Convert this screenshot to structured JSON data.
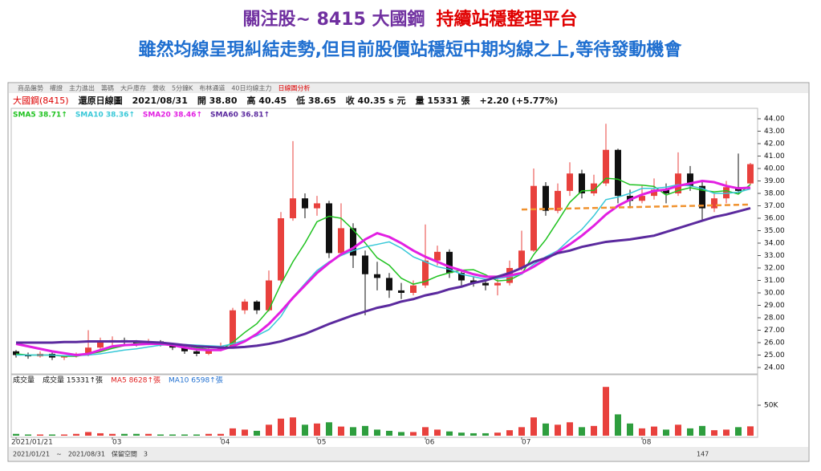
{
  "header": {
    "title": "關注股~ 8415 大國鋼",
    "highlight": "持續站穩整理平台",
    "subtitle": "雖然均線呈現糾結走勢,但目前股價站穩短中期均線之上,等待發動機會"
  },
  "toolbar": {
    "tabs": [
      "商品盤勢",
      "權證",
      "主力進出",
      "籌碼",
      "大戶庫存",
      "營收",
      "5分鐘K",
      "布林通道",
      "40日均線主力",
      "日線圖分析"
    ]
  },
  "info": {
    "stock": "大國鋼(8415)",
    "mode": "還原日線圖",
    "date": "2021/08/31",
    "open": "開 38.80",
    "high": "高 40.45",
    "low": "低 38.65",
    "close": "收 40.35 s 元",
    "volume": "量 15331 張",
    "change": "+2.20 (+5.77%)"
  },
  "chart_data": {
    "type": "candlestick",
    "categories": [
      "2021/01/21",
      null,
      null,
      null,
      null,
      null,
      null,
      null,
      "03",
      null,
      null,
      null,
      null,
      null,
      null,
      null,
      null,
      "04",
      null,
      null,
      null,
      null,
      null,
      null,
      null,
      "05",
      null,
      null,
      null,
      null,
      null,
      null,
      null,
      null,
      "06",
      null,
      null,
      null,
      null,
      null,
      null,
      null,
      "07",
      null,
      null,
      null,
      null,
      null,
      null,
      null,
      null,
      null,
      "08",
      null,
      null,
      null,
      null,
      null,
      null,
      null,
      null,
      null
    ],
    "open": [
      25.3,
      25.0,
      24.9,
      25.1,
      24.8,
      24.9,
      25.0,
      25.6,
      26.0,
      26.2,
      26.0,
      25.9,
      26.1,
      25.9,
      25.6,
      25.3,
      25.1,
      25.4,
      25.7,
      28.6,
      29.3,
      28.6,
      31.0,
      36.0,
      37.6,
      36.8,
      37.2,
      33.2,
      35.2,
      33.0,
      31.5,
      31.2,
      30.2,
      30.0,
      30.6,
      32.6,
      33.3,
      31.6,
      31.0,
      30.8,
      30.6,
      30.8,
      32.0,
      33.4,
      38.6,
      36.6,
      38.2,
      39.6,
      38.0,
      38.8,
      41.5,
      37.8,
      37.4,
      37.8,
      38.3,
      38.0,
      39.6,
      38.6,
      36.8,
      37.6,
      38.5,
      38.8
    ],
    "high": [
      25.4,
      25.2,
      25.3,
      25.2,
      25.0,
      25.2,
      27.0,
      26.4,
      26.5,
      26.4,
      26.2,
      26.3,
      26.2,
      26.0,
      25.7,
      25.4,
      25.6,
      26.0,
      28.8,
      29.5,
      29.4,
      31.8,
      36.5,
      42.2,
      38.0,
      37.8,
      37.4,
      37.2,
      35.6,
      33.4,
      32.5,
      31.6,
      30.8,
      31.0,
      35.5,
      33.8,
      33.5,
      31.9,
      31.3,
      31.1,
      31.2,
      32.6,
      35.0,
      40.0,
      38.9,
      38.8,
      40.5,
      39.9,
      39.5,
      43.6,
      41.6,
      38.3,
      38.6,
      39.2,
      38.8,
      41.3,
      40.2,
      38.9,
      38.0,
      39.0,
      41.2,
      40.45
    ],
    "low": [
      24.8,
      24.7,
      24.8,
      24.6,
      24.6,
      24.8,
      24.9,
      25.4,
      25.8,
      25.8,
      25.7,
      25.8,
      25.7,
      25.4,
      25.1,
      24.9,
      25.0,
      25.3,
      25.6,
      28.3,
      28.3,
      28.5,
      30.8,
      35.8,
      36.0,
      36.2,
      32.8,
      33.0,
      32.0,
      28.2,
      30.2,
      29.6,
      29.5,
      29.8,
      30.4,
      32.2,
      31.2,
      30.6,
      30.5,
      30.2,
      29.8,
      30.6,
      31.8,
      33.3,
      36.2,
      36.4,
      37.8,
      37.6,
      37.8,
      38.6,
      37.2,
      36.8,
      37.2,
      37.5,
      37.2,
      37.8,
      38.2,
      35.8,
      36.5,
      37.2,
      37.9,
      38.65
    ],
    "close": [
      25.0,
      24.9,
      25.1,
      24.8,
      24.9,
      25.0,
      25.6,
      26.0,
      26.2,
      26.0,
      25.9,
      26.1,
      25.9,
      25.6,
      25.3,
      25.1,
      25.4,
      25.7,
      28.6,
      29.3,
      28.6,
      31.0,
      36.0,
      37.6,
      36.8,
      37.2,
      33.2,
      35.2,
      33.0,
      31.5,
      31.2,
      30.2,
      30.0,
      30.6,
      32.6,
      33.3,
      31.6,
      31.0,
      30.8,
      30.6,
      30.8,
      32.0,
      33.4,
      38.6,
      36.6,
      38.2,
      39.6,
      38.0,
      38.8,
      41.5,
      37.8,
      37.4,
      37.8,
      38.3,
      38.0,
      39.6,
      38.6,
      36.8,
      37.6,
      38.5,
      38.2,
      40.35
    ],
    "up_color": "#e8413d",
    "down_color": "#111111",
    "series": [
      {
        "name": "SMA5 38.71↑",
        "color": "#1fc21f",
        "values": [
          25.1,
          25.0,
          25.0,
          25.0,
          24.9,
          24.9,
          25.08,
          25.26,
          25.54,
          25.76,
          25.94,
          26.04,
          26.02,
          25.9,
          25.76,
          25.6,
          25.46,
          25.42,
          26.02,
          26.82,
          27.52,
          28.64,
          30.7,
          32.5,
          34.0,
          35.72,
          36.16,
          36.0,
          35.08,
          34.02,
          32.82,
          32.22,
          31.18,
          30.7,
          30.92,
          31.34,
          31.62,
          31.82,
          31.86,
          31.46,
          30.96,
          31.04,
          31.52,
          33.08,
          34.28,
          35.76,
          37.28,
          38.2,
          38.24,
          39.22,
          39.14,
          38.7,
          38.66,
          38.56,
          37.86,
          38.22,
          38.46,
          38.26,
          38.12,
          38.22,
          37.94,
          38.71
        ]
      },
      {
        "name": "SMA10 38.36↑",
        "color": "#38c8d8",
        "values": [
          25.0,
          25.0,
          25.0,
          25.0,
          24.95,
          24.95,
          25.0,
          25.1,
          25.25,
          25.4,
          25.5,
          25.65,
          25.8,
          25.85,
          25.85,
          25.8,
          25.75,
          25.7,
          25.9,
          26.2,
          26.55,
          27.05,
          28.1,
          29.65,
          30.75,
          31.8,
          32.5,
          33.0,
          33.4,
          33.7,
          33.9,
          34.1,
          33.6,
          32.9,
          32.5,
          32.1,
          31.9,
          31.5,
          31.3,
          31.1,
          31.15,
          31.3,
          31.5,
          32.3,
          32.9,
          33.4,
          34.3,
          35.1,
          36.2,
          37.5,
          37.7,
          38.0,
          38.4,
          38.4,
          38.5,
          38.7,
          38.6,
          38.4,
          38.0,
          38.0,
          38.1,
          38.36
        ]
      },
      {
        "name": "SMA20 38.46↑",
        "color": "#e21fe2",
        "values": [
          25.9,
          25.7,
          25.5,
          25.3,
          25.15,
          25.0,
          25.1,
          25.4,
          25.7,
          25.8,
          25.85,
          25.9,
          25.9,
          25.8,
          25.6,
          25.45,
          25.4,
          25.4,
          25.7,
          26.1,
          26.7,
          27.5,
          28.5,
          29.6,
          30.6,
          31.6,
          32.4,
          33.1,
          33.6,
          34.3,
          34.8,
          34.5,
          34.0,
          33.4,
          32.9,
          32.5,
          32.1,
          31.8,
          31.5,
          31.3,
          31.3,
          31.4,
          31.6,
          32.1,
          32.7,
          33.3,
          33.9,
          34.6,
          35.4,
          36.3,
          37.0,
          37.5,
          37.9,
          38.2,
          38.3,
          38.6,
          38.8,
          39.0,
          38.9,
          38.6,
          38.4,
          38.46
        ]
      },
      {
        "name": "SMA60 36.81↑",
        "color": "#5b2a9e",
        "values": [
          26.0,
          26.0,
          26.0,
          26.0,
          26.05,
          26.05,
          26.1,
          26.1,
          26.1,
          26.1,
          26.1,
          26.05,
          26.0,
          25.9,
          25.8,
          25.7,
          25.65,
          25.6,
          25.6,
          25.65,
          25.75,
          25.9,
          26.1,
          26.4,
          26.7,
          27.1,
          27.5,
          27.85,
          28.2,
          28.5,
          28.8,
          29.0,
          29.3,
          29.5,
          29.8,
          30.0,
          30.3,
          30.5,
          30.8,
          31.0,
          31.3,
          31.6,
          32.0,
          32.5,
          32.8,
          33.2,
          33.4,
          33.7,
          33.9,
          34.1,
          34.2,
          34.3,
          34.45,
          34.6,
          34.9,
          35.2,
          35.5,
          35.8,
          36.1,
          36.3,
          36.55,
          36.81
        ]
      }
    ],
    "support_line": {
      "x": [
        42,
        61
      ],
      "values": [
        36.7,
        37.1
      ],
      "color": "#f0922e"
    },
    "ylim": [
      23.5,
      44.5
    ],
    "yticks": [
      {
        "value": 24,
        "label": "24.00"
      },
      {
        "value": 25,
        "label": "25.00"
      },
      {
        "value": 26,
        "label": "26.00"
      },
      {
        "value": 27,
        "label": "27.00"
      },
      {
        "value": 28,
        "label": "28.00"
      },
      {
        "value": 29,
        "label": "29.00"
      },
      {
        "value": 30,
        "label": "30.00"
      },
      {
        "value": 31,
        "label": "31.00"
      },
      {
        "value": 32,
        "label": "32.00"
      },
      {
        "value": 33,
        "label": "33.00"
      },
      {
        "value": 34,
        "label": "34.00"
      },
      {
        "value": 35,
        "label": "35.00"
      },
      {
        "value": 36,
        "label": "36.00"
      },
      {
        "value": 37,
        "label": "37.00"
      },
      {
        "value": 38,
        "label": "38.00"
      },
      {
        "value": 39,
        "label": "39.00"
      },
      {
        "value": 40,
        "label": "40.00"
      },
      {
        "value": 41,
        "label": "41.00"
      },
      {
        "value": 42,
        "label": "42.00"
      },
      {
        "value": 43,
        "label": "43.00"
      },
      {
        "value": 44,
        "label": "44.00"
      }
    ],
    "grid": false,
    "volume": {
      "legend": [
        "成交量",
        "成交量 15331↑張",
        "MA5 8628↑張",
        "MA10 6598↑張"
      ],
      "values": [
        3000,
        2000,
        2000,
        2000,
        2000,
        3000,
        6000,
        4000,
        3000,
        3000,
        3000,
        3000,
        2000,
        2000,
        2000,
        2000,
        3000,
        3000,
        12000,
        10000,
        8000,
        18000,
        28000,
        30000,
        18000,
        20000,
        22000,
        15000,
        14000,
        16000,
        10000,
        8000,
        6000,
        6000,
        14000,
        10000,
        7000,
        5000,
        4000,
        4000,
        5000,
        9000,
        14000,
        30000,
        20000,
        18000,
        22000,
        14000,
        16000,
        80000,
        35000,
        20000,
        12000,
        15000,
        10000,
        18000,
        12000,
        16000,
        9000,
        10000,
        14000,
        15331
      ],
      "ylim": [
        0,
        100000
      ],
      "yticks": [
        {
          "value": 50000,
          "label": "50K"
        }
      ],
      "down_color": "#2e9e3e"
    }
  },
  "footer": {
    "from": "2021/01/21",
    "sep": "~",
    "to": "2021/08/31",
    "reserve": "保留空間",
    "reserve_value": "3",
    "count": "147"
  }
}
